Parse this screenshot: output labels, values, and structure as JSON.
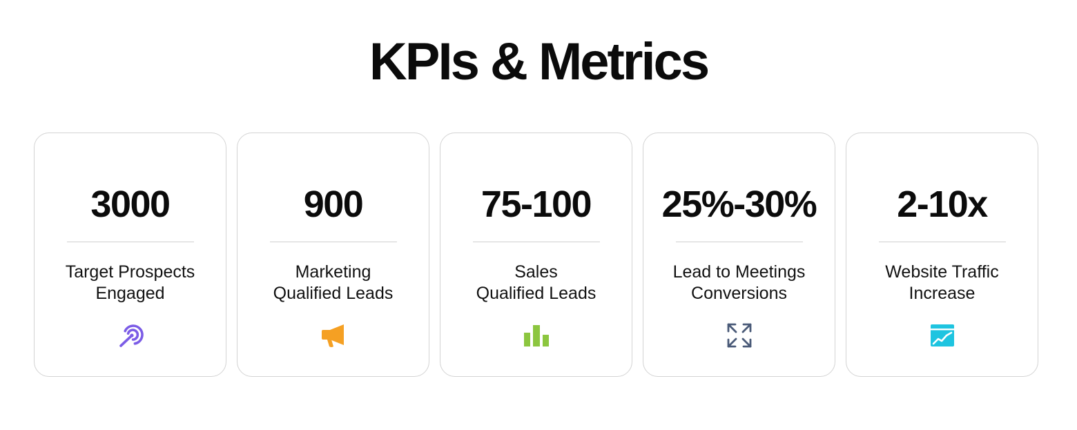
{
  "title": "KPIs & Metrics",
  "cards": [
    {
      "value": "3000",
      "label_line1": "Target Prospects",
      "label_line2": "Engaged",
      "icon": "target-arrow-icon",
      "icon_color": "#7b5ce6"
    },
    {
      "value": "900",
      "label_line1": "Marketing",
      "label_line2": "Qualified Leads",
      "icon": "megaphone-icon",
      "icon_color": "#f5a023"
    },
    {
      "value": "75-100",
      "label_line1": "Sales",
      "label_line2": "Qualified Leads",
      "icon": "bar-chart-icon",
      "icon_color": "#8cc63f"
    },
    {
      "value": "25%-30%",
      "label_line1": "Lead to Meetings",
      "label_line2": "Conversions",
      "icon": "expand-arrows-icon",
      "icon_color": "#4a5a78"
    },
    {
      "value": "2-10x",
      "label_line1": "Website Traffic",
      "label_line2": "Increase",
      "icon": "traffic-chart-icon",
      "icon_color": "#1ec4e0"
    }
  ]
}
